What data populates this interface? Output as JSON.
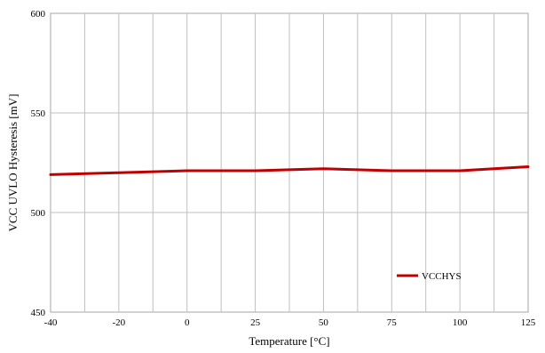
{
  "chart_data": {
    "type": "line",
    "title": "",
    "xlabel": "Temperature [°C]",
    "ylabel": "VCC UVLO  Hysteresis  [mV]",
    "x_categories": [
      "-40",
      "-20",
      "0",
      "25",
      "50",
      "75",
      "100",
      "125"
    ],
    "y_ticks": [
      450,
      500,
      550,
      600
    ],
    "y_tick_labels": [
      "450",
      "500",
      "550",
      "600"
    ],
    "ylim": [
      450,
      600
    ],
    "grid": true,
    "legend_position": "bottom-right",
    "series": [
      {
        "name": "VCCHYS",
        "color": "#c00000",
        "x": [
          "-40",
          "-20",
          "0",
          "25",
          "50",
          "75",
          "100",
          "125"
        ],
        "values": [
          519,
          520,
          521,
          521,
          522,
          521,
          521,
          523
        ]
      }
    ]
  }
}
